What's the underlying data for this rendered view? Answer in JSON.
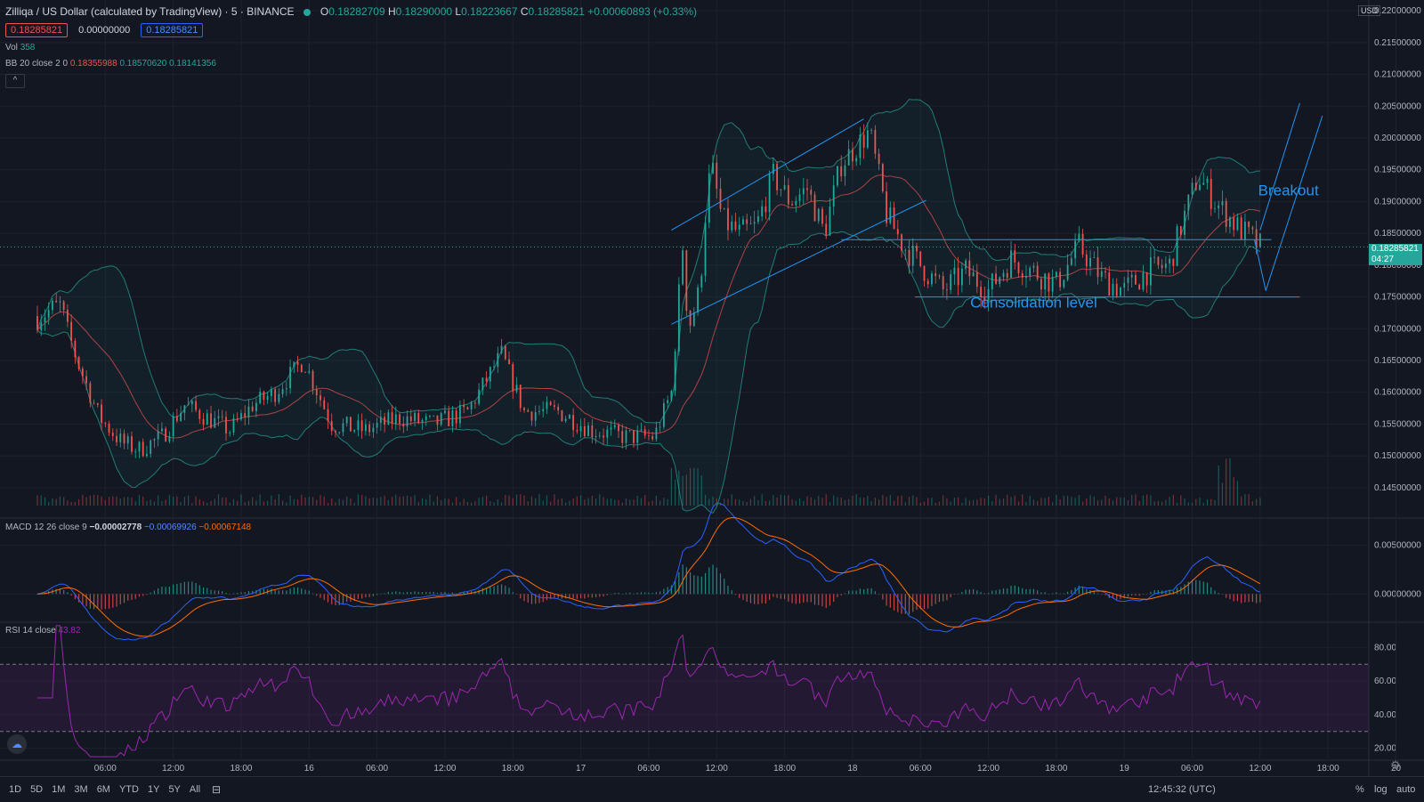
{
  "header": {
    "symbol": "Zilliqa / US Dollar (calculated by TradingView) · 5 · BINANCE",
    "o_label": "O",
    "o": "0.18282709",
    "h_label": "H",
    "h": "0.18290000",
    "l_label": "L",
    "l": "0.18223667",
    "c_label": "C",
    "c": "0.18285821",
    "change": "+0.00060893 (+0.33%)"
  },
  "order_boxes": {
    "sell": "0.18285821",
    "spread": "0.00000000",
    "buy": "0.18285821"
  },
  "indicators": {
    "vol_label": "Vol",
    "vol_value": "358",
    "bb_label": "BB 20 close 2 0",
    "bb_basis": "0.18355988",
    "bb_upper": "0.18570620",
    "bb_lower": "0.18141356",
    "macd_label": "MACD 12 26 close 9",
    "macd_hist": "−0.00002778",
    "macd_line": "−0.00069926",
    "macd_signal": "−0.00067148",
    "rsi_label": "RSI 14 close",
    "rsi_value": "43.82"
  },
  "collapse_icon": "chevron-up-icon",
  "axis_currency": "USD",
  "last_price": {
    "price": "0.18285821",
    "countdown": "04:27"
  },
  "colors": {
    "up": "#26a69a",
    "down": "#ef5350",
    "bb": "#26a69a",
    "macd": "#2962ff",
    "signal": "#ff6d00",
    "rsi": "#9c27b0",
    "annotation": "#2196f3"
  },
  "bottom_bar": {
    "ranges": [
      "1D",
      "5D",
      "1M",
      "3M",
      "6M",
      "YTD",
      "1Y",
      "5Y",
      "All"
    ],
    "time": "12:45:32 (UTC)",
    "percent": "%",
    "log": "log",
    "auto": "auto"
  },
  "chart_data": [
    {
      "type": "candlestick",
      "pane": "price",
      "y_ticks": [
        "0.14500000",
        "0.15000000",
        "0.15500000",
        "0.16000000",
        "0.16500000",
        "0.17000000",
        "0.17500000",
        "0.18000000",
        "0.18500000",
        "0.19000000",
        "0.19500000",
        "0.20000000",
        "0.20500000",
        "0.21000000",
        "0.21500000",
        "0.22000000"
      ],
      "ylim": [
        0.1405,
        0.2217
      ],
      "x_ticks": [
        "06:00",
        "12:00",
        "18:00",
        "16",
        "06:00",
        "12:00",
        "18:00",
        "17",
        "06:00",
        "12:00",
        "18:00",
        "18",
        "06:00",
        "12:00",
        "18:00",
        "19",
        "06:00",
        "12:00",
        "18:00",
        "20"
      ],
      "price_path": [
        [
          "15 00:00",
          0.172
        ],
        [
          "15 02:00",
          0.1735
        ],
        [
          "15 03:30",
          0.165
        ],
        [
          "15 05:30",
          0.156
        ],
        [
          "15 07:30",
          0.152
        ],
        [
          "15 09:00",
          0.151
        ],
        [
          "15 11:00",
          0.153
        ],
        [
          "15 13:00",
          0.158
        ],
        [
          "15 15:00",
          0.156
        ],
        [
          "15 17:00",
          0.154
        ],
        [
          "15 19:00",
          0.158
        ],
        [
          "15 21:00",
          0.16
        ],
        [
          "15 23:30",
          0.165
        ],
        [
          "16 02:00",
          0.155
        ],
        [
          "16 05:00",
          0.154
        ],
        [
          "16 08:00",
          0.156
        ],
        [
          "16 11:00",
          0.155
        ],
        [
          "16 14:00",
          0.157
        ],
        [
          "16 17:00",
          0.166
        ],
        [
          "16 19:00",
          0.157
        ],
        [
          "16 22:00",
          0.157
        ],
        [
          "17 01:00",
          0.154
        ],
        [
          "17 04:00",
          0.153
        ],
        [
          "17 06:30",
          0.153
        ],
        [
          "17 08:00",
          0.16
        ],
        [
          "17 09:00",
          0.183
        ],
        [
          "17 09:30",
          0.17
        ],
        [
          "17 10:30",
          0.176
        ],
        [
          "17 11:00",
          0.188
        ],
        [
          "17 11:30",
          0.196
        ],
        [
          "17 12:30",
          0.187
        ],
        [
          "17 14:00",
          0.185
        ],
        [
          "17 15:30",
          0.186
        ],
        [
          "17 17:00",
          0.194
        ],
        [
          "17 18:30",
          0.19
        ],
        [
          "17 20:00",
          0.192
        ],
        [
          "17 21:30",
          0.185
        ],
        [
          "17 23:00",
          0.196
        ],
        [
          "18 01:30",
          0.201
        ],
        [
          "18 03:00",
          0.188
        ],
        [
          "18 04:30",
          0.183
        ],
        [
          "18 06:00",
          0.18
        ],
        [
          "18 08:00",
          0.176
        ],
        [
          "18 10:00",
          0.179
        ],
        [
          "18 12:00",
          0.176
        ],
        [
          "18 14:00",
          0.181
        ],
        [
          "18 16:00",
          0.179
        ],
        [
          "18 18:00",
          0.177
        ],
        [
          "18 20:00",
          0.183
        ],
        [
          "18 22:00",
          0.178
        ],
        [
          "19 00:00",
          0.176
        ],
        [
          "19 02:00",
          0.179
        ],
        [
          "19 04:00",
          0.18
        ],
        [
          "19 05:00",
          0.186
        ],
        [
          "19 06:30",
          0.194
        ],
        [
          "19 08:00",
          0.19
        ],
        [
          "19 10:00",
          0.186
        ],
        [
          "19 12:00",
          0.183
        ]
      ],
      "annotations": [
        {
          "type": "text",
          "label": "Breakout",
          "x": "19 14:30",
          "y": 0.191
        },
        {
          "type": "text",
          "label": "Consolidation level",
          "x": "18 16:00",
          "y": 0.1733
        }
      ]
    },
    {
      "type": "bar",
      "pane": "volume",
      "series": [
        {
          "name": "Vol"
        }
      ]
    },
    {
      "type": "line",
      "pane": "macd",
      "y_ticks": [
        "0.00000000",
        "0.00500000"
      ],
      "ylim": [
        -0.0027,
        0.0075
      ],
      "series": [
        {
          "name": "MACD"
        },
        {
          "name": "Signal"
        }
      ]
    },
    {
      "type": "line",
      "pane": "rsi",
      "y_ticks": [
        "20.00",
        "40.00",
        "60.00",
        "80.00"
      ],
      "ylim": [
        14,
        94
      ],
      "bands": [
        30,
        70
      ],
      "series": [
        {
          "name": "RSI"
        }
      ]
    }
  ]
}
